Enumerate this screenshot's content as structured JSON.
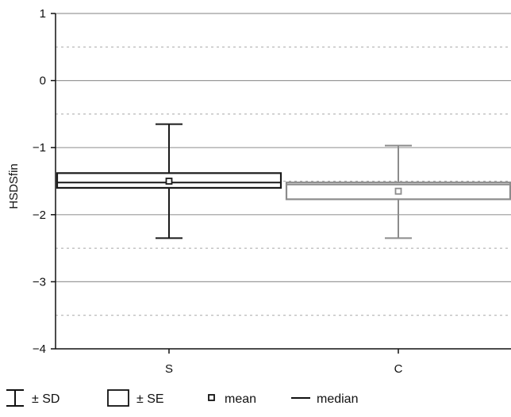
{
  "chart_data": {
    "type": "boxplot",
    "ylabel": "HSDSfin",
    "ylim": [
      -4,
      1
    ],
    "yticks": [
      1,
      0,
      -1,
      -2,
      -3,
      -4
    ],
    "ytick_labels": [
      "1",
      "0",
      "−1",
      "−2",
      "−3",
      "−4"
    ],
    "grid": {
      "major": true,
      "minor_dotted": true
    },
    "categories": [
      "S",
      "C"
    ],
    "groups": [
      {
        "name": "S",
        "mean": -1.5,
        "median": -1.52,
        "se_low": -1.6,
        "se_high": -1.38,
        "sd_low": -2.35,
        "sd_high": -0.65,
        "color": "#1a1a1a"
      },
      {
        "name": "C",
        "mean": -1.65,
        "median": -1.55,
        "se_low": -1.77,
        "se_high": -1.52,
        "sd_low": -2.35,
        "sd_high": -0.97,
        "color": "#8c8c8c"
      }
    ],
    "legend": [
      {
        "symbol": "whisker",
        "label": "± SD"
      },
      {
        "symbol": "box",
        "label": "± SE"
      },
      {
        "symbol": "mean",
        "label": "mean"
      },
      {
        "symbol": "median",
        "label": "median"
      }
    ],
    "legend_position": "bottom"
  }
}
